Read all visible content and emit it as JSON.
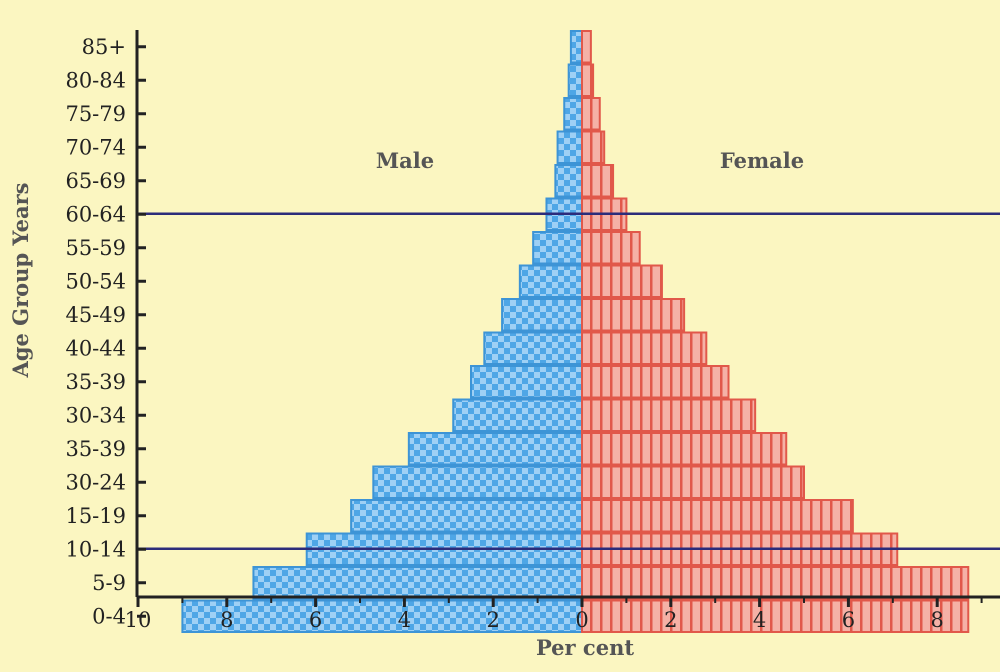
{
  "chart_data": {
    "type": "bar",
    "orientation": "horizontal-population-pyramid",
    "categories": [
      "85+",
      "80-84",
      "75-79",
      "70-74",
      "65-69",
      "60-64",
      "55-59",
      "50-54",
      "45-49",
      "40-44",
      "35-39",
      "30-34",
      "35-39",
      "30-24",
      "15-19",
      "10-14",
      "5-9",
      "0-4"
    ],
    "series": [
      {
        "name": "Male",
        "color": "#6cb2ea",
        "values": [
          0.25,
          0.3,
          0.4,
          0.55,
          0.6,
          0.8,
          1.1,
          1.4,
          1.8,
          2.2,
          2.5,
          2.9,
          3.9,
          4.7,
          5.2,
          6.2,
          7.4,
          9.0
        ]
      },
      {
        "name": "Female",
        "color": "#f29a8e",
        "values": [
          0.2,
          0.25,
          0.4,
          0.5,
          0.7,
          1.0,
          1.3,
          1.8,
          2.3,
          2.8,
          3.3,
          3.9,
          4.6,
          5.0,
          6.1,
          7.1,
          8.7,
          8.7
        ]
      }
    ],
    "xlabel": "Per cent",
    "ylabel": "Age Group Years",
    "xlim": [
      -10,
      10
    ],
    "x_ticks": [
      -10,
      -8,
      -6,
      -4,
      -2,
      0,
      2,
      4,
      6,
      8
    ],
    "x_tick_labels": [
      "10",
      "8",
      "6",
      "4",
      "2",
      "0",
      "2",
      "4",
      "6",
      "8"
    ],
    "reference_lines": [
      {
        "between": [
          "65-69",
          "60-64"
        ],
        "color": "#2c2c7a"
      },
      {
        "between": [
          "15-19",
          "10-14"
        ],
        "color": "#2c2c7a"
      }
    ],
    "grid": false,
    "legend": "inline labels"
  }
}
